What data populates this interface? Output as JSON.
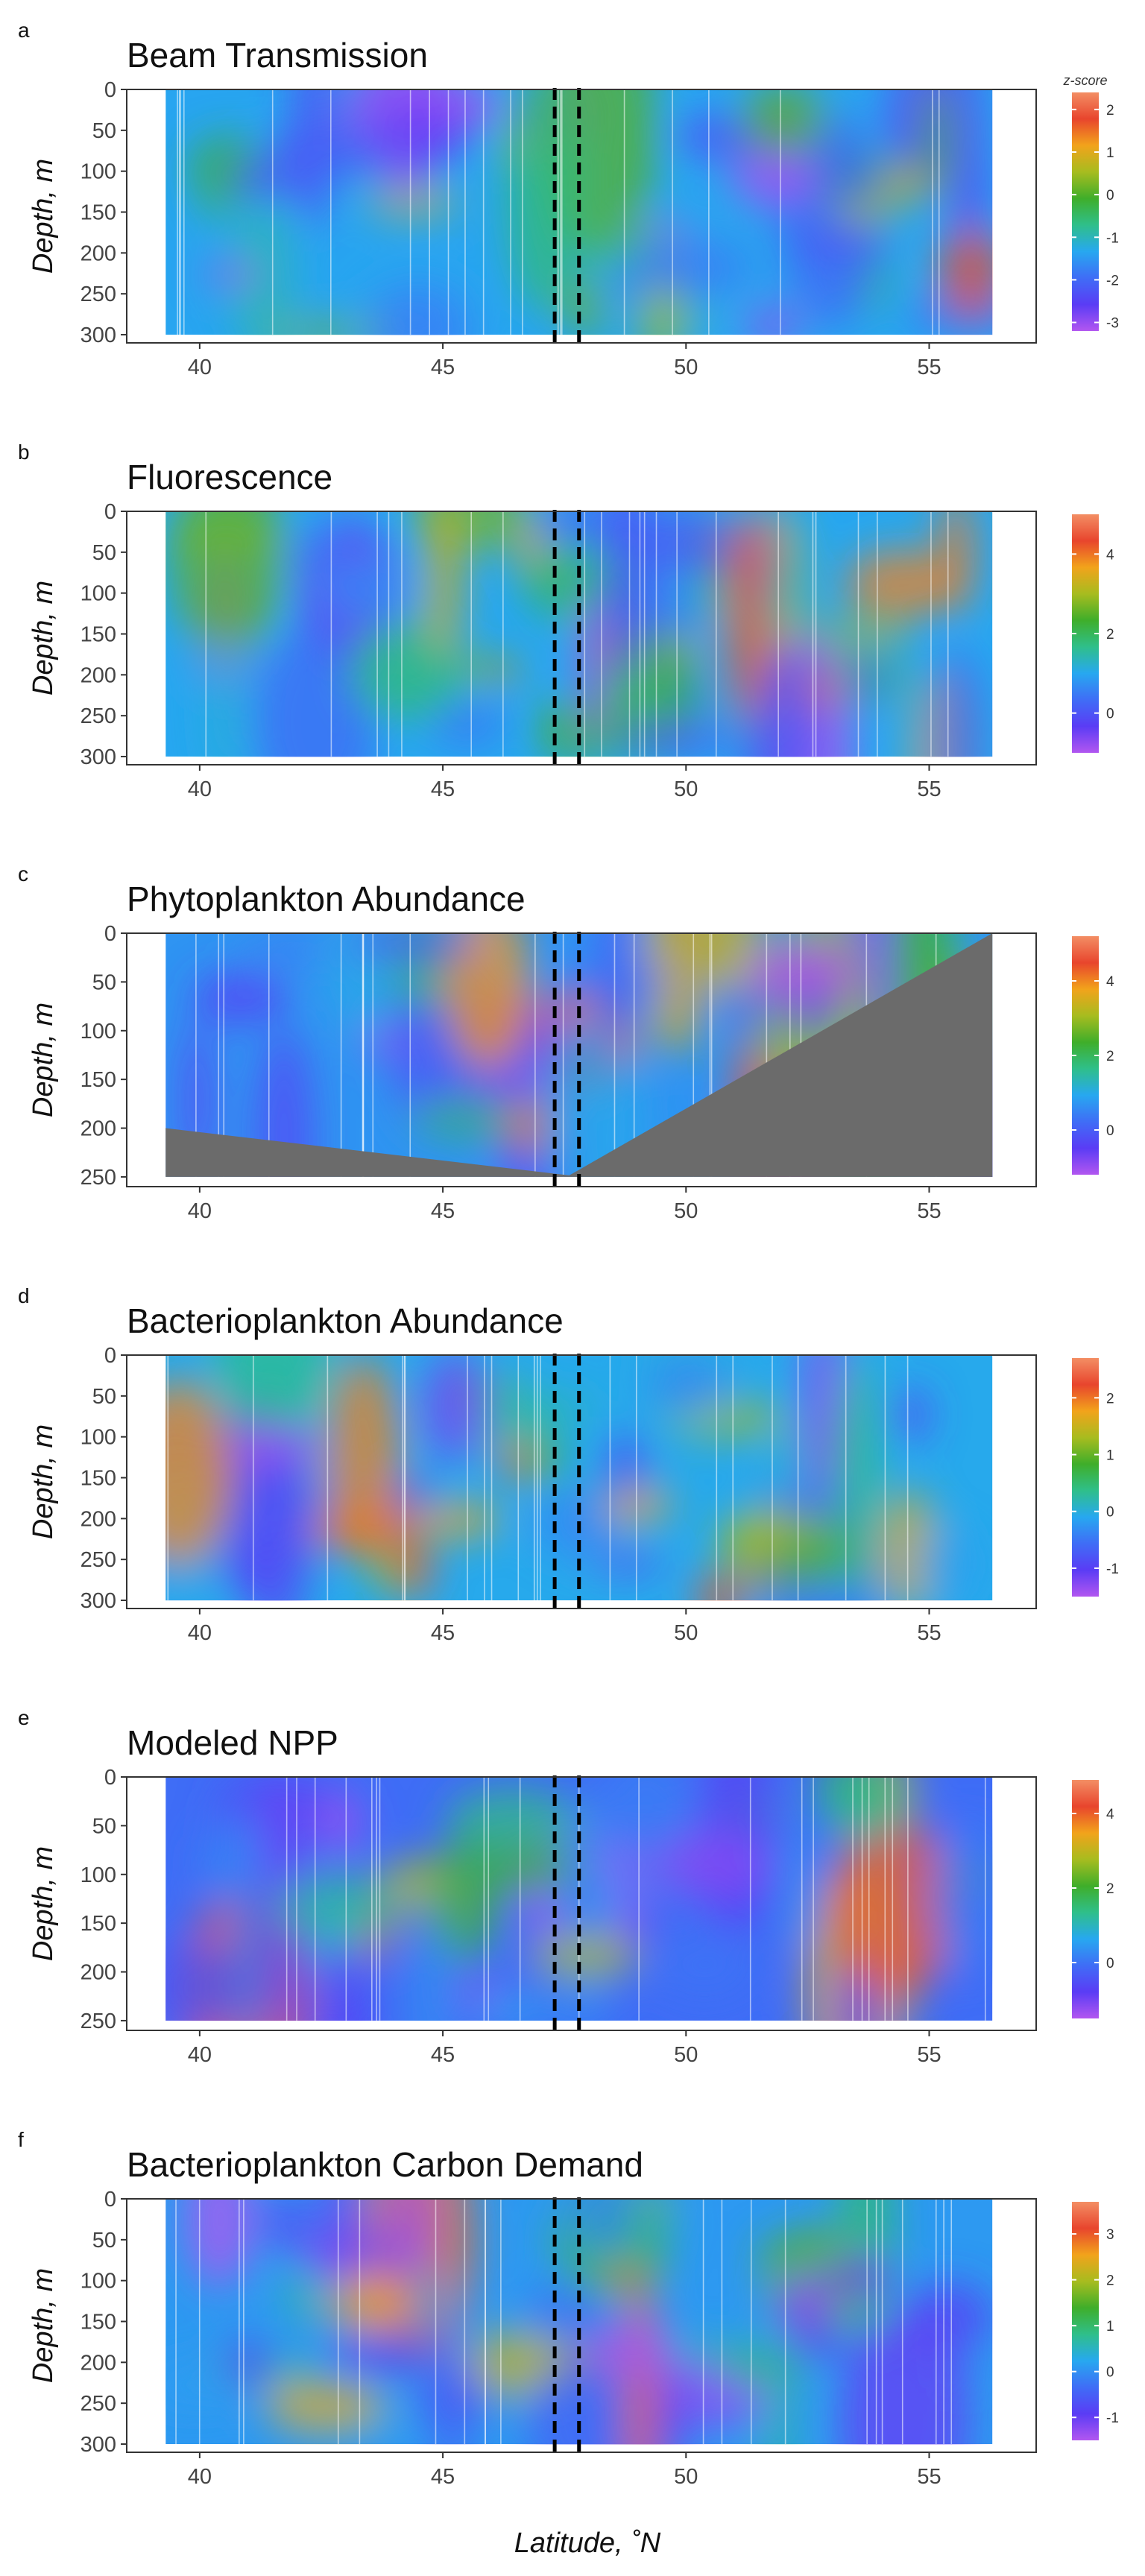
{
  "xlabel": "Latitude, ˚N",
  "colorbar_label": "z-score",
  "panels": [
    {
      "letter": "a",
      "title": "Beam Transmission",
      "ylabel": "Depth, m",
      "xlim": [
        38.5,
        57.2
      ],
      "xticks": [
        40,
        45,
        50,
        55
      ],
      "ylim": [
        0,
        310
      ],
      "yticks": [
        0,
        50,
        100,
        150,
        200,
        250,
        300
      ],
      "cbar": {
        "range": [
          -3.2,
          2.4
        ],
        "ticks": [
          2,
          1,
          0,
          -1,
          -2,
          -3
        ],
        "show_label": true
      },
      "seed": 11
    },
    {
      "letter": "b",
      "title": "Fluorescence",
      "ylabel": "Depth, m",
      "xlim": [
        38.5,
        57.2
      ],
      "xticks": [
        40,
        45,
        50,
        55
      ],
      "ylim": [
        0,
        310
      ],
      "yticks": [
        0,
        50,
        100,
        150,
        200,
        250,
        300
      ],
      "cbar": {
        "range": [
          -1,
          5
        ],
        "ticks": [
          4,
          2,
          0
        ],
        "show_label": false
      },
      "seed": 23
    },
    {
      "letter": "c",
      "title": "Phytoplankton Abundance",
      "ylabel": "Depth, m",
      "xlim": [
        38.5,
        57.2
      ],
      "xticks": [
        40,
        45,
        50,
        55
      ],
      "ylim": [
        0,
        260
      ],
      "yticks": [
        0,
        50,
        100,
        150,
        200,
        250
      ],
      "cbar": {
        "range": [
          -1.2,
          5.2
        ],
        "ticks": [
          4,
          2,
          0
        ],
        "show_label": false
      },
      "seed": 37
    },
    {
      "letter": "d",
      "title": "Bacterioplankton Abundance",
      "ylabel": "Depth, m",
      "xlim": [
        38.5,
        57.2
      ],
      "xticks": [
        40,
        45,
        50,
        55
      ],
      "ylim": [
        0,
        310
      ],
      "yticks": [
        0,
        50,
        100,
        150,
        200,
        250,
        300
      ],
      "cbar": {
        "range": [
          -1.5,
          2.7
        ],
        "ticks": [
          2,
          1,
          0,
          -1
        ],
        "show_label": false
      },
      "seed": 41
    },
    {
      "letter": "e",
      "title": "Modeled NPP",
      "ylabel": "Depth, m",
      "xlim": [
        38.5,
        57.2
      ],
      "xticks": [
        40,
        45,
        50,
        55
      ],
      "ylim": [
        0,
        260
      ],
      "yticks": [
        0,
        50,
        100,
        150,
        200,
        250
      ],
      "cbar": {
        "range": [
          -1.5,
          4.9
        ],
        "ticks": [
          4,
          2,
          0
        ],
        "show_label": false
      },
      "seed": 53
    },
    {
      "letter": "f",
      "title": "Bacterioplankton Carbon Demand",
      "ylabel": "Depth, m",
      "xlim": [
        38.5,
        57.2
      ],
      "xticks": [
        40,
        45,
        50,
        55
      ],
      "ylim": [
        0,
        310
      ],
      "yticks": [
        0,
        50,
        100,
        150,
        200,
        250,
        300
      ],
      "cbar": {
        "range": [
          -1.5,
          3.7
        ],
        "ticks": [
          3,
          2,
          1,
          0,
          -1
        ],
        "show_label": false
      },
      "seed": 67
    }
  ],
  "chart_data": [
    {
      "type": "heatmap",
      "title": "Beam Transmission",
      "xlabel": "",
      "ylabel": "Depth, m",
      "xlim": [
        38.5,
        57.2
      ],
      "ylim": [
        300,
        0
      ],
      "x_range": [
        39.3,
        56.3
      ],
      "y_range": [
        0,
        300
      ],
      "colorbar": {
        "range": [
          -3.2,
          2.4
        ],
        "ticks": [
          2,
          1,
          0,
          -1,
          -2,
          -3
        ],
        "label": "z-score"
      },
      "reference_lines": [
        47.3,
        47.8
      ]
    },
    {
      "type": "heatmap",
      "title": "Fluorescence",
      "xlabel": "",
      "ylabel": "Depth, m",
      "xlim": [
        38.5,
        57.2
      ],
      "ylim": [
        300,
        0
      ],
      "x_range": [
        39.3,
        56.3
      ],
      "y_range": [
        0,
        300
      ],
      "colorbar": {
        "range": [
          -1,
          5
        ],
        "ticks": [
          4,
          2,
          0
        ]
      },
      "reference_lines": [
        47.3,
        47.8
      ]
    },
    {
      "type": "heatmap",
      "title": "Phytoplankton Abundance",
      "xlabel": "",
      "ylabel": "Depth, m",
      "xlim": [
        38.5,
        57.2
      ],
      "ylim": [
        250,
        0
      ],
      "x_range": [
        39.3,
        56.3
      ],
      "y_range": [
        0,
        250
      ],
      "colorbar": {
        "range": [
          -1.2,
          5.2
        ],
        "ticks": [
          4,
          2,
          0
        ]
      },
      "reference_lines": [
        47.3,
        47.8
      ]
    },
    {
      "type": "heatmap",
      "title": "Bacterioplankton Abundance",
      "xlabel": "",
      "ylabel": "Depth, m",
      "xlim": [
        38.5,
        57.2
      ],
      "ylim": [
        300,
        0
      ],
      "x_range": [
        39.3,
        56.3
      ],
      "y_range": [
        0,
        300
      ],
      "colorbar": {
        "range": [
          -1.5,
          2.7
        ],
        "ticks": [
          2,
          1,
          0,
          -1
        ]
      },
      "reference_lines": [
        47.3,
        47.8
      ]
    },
    {
      "type": "heatmap",
      "title": "Modeled NPP",
      "xlabel": "",
      "ylabel": "Depth, m",
      "xlim": [
        38.5,
        57.2
      ],
      "ylim": [
        250,
        0
      ],
      "x_range": [
        39.3,
        56.3
      ],
      "y_range": [
        0,
        250
      ],
      "colorbar": {
        "range": [
          -1.5,
          4.9
        ],
        "ticks": [
          4,
          2,
          0
        ]
      },
      "reference_lines": [
        47.3,
        47.8
      ]
    },
    {
      "type": "heatmap",
      "title": "Bacterioplankton Carbon Demand",
      "xlabel": "Latitude, ˚N",
      "ylabel": "Depth, m",
      "xlim": [
        38.5,
        57.2
      ],
      "ylim": [
        300,
        0
      ],
      "x_range": [
        39.3,
        56.3
      ],
      "y_range": [
        0,
        300
      ],
      "colorbar": {
        "range": [
          -1.5,
          3.7
        ],
        "ticks": [
          3,
          2,
          1,
          0,
          -1
        ]
      },
      "reference_lines": [
        47.3,
        47.8
      ]
    }
  ],
  "colors": {
    "colormap": [
      "#b256f0",
      "#5a3cf5",
      "#3f6df6",
      "#27a8f0",
      "#2fbf8a",
      "#3fae2a",
      "#a7bc1f",
      "#f2a31b",
      "#e8452d",
      "#f38e64"
    ],
    "bathymetry": "#6b6b6b",
    "reference_line": "#000000"
  }
}
